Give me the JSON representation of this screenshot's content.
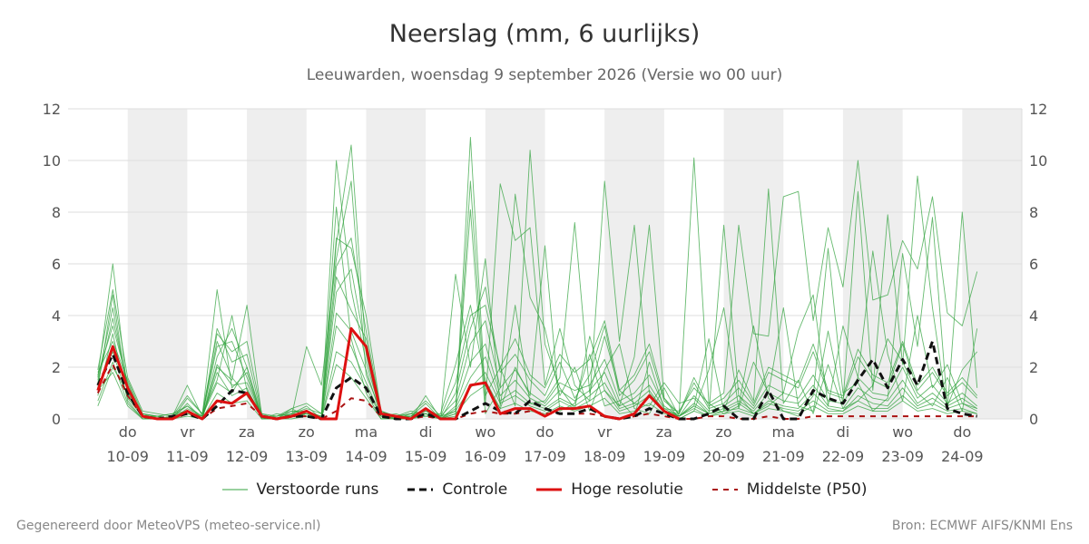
{
  "chart_data": {
    "type": "line",
    "title": "Neerslag (mm, 6 uurlijks)",
    "subtitle": "Leeuwarden, woensdag  9 september 2026 (Versie wo 00 uur)",
    "ylim": [
      0,
      12
    ],
    "yticks": [
      0,
      2,
      4,
      6,
      8,
      10,
      12
    ],
    "grid": true,
    "legend_position": "bottom",
    "day_labels": [
      {
        "day": "do",
        "date": "10-09"
      },
      {
        "day": "vr",
        "date": "11-09"
      },
      {
        "day": "za",
        "date": "12-09"
      },
      {
        "day": "zo",
        "date": "13-09"
      },
      {
        "day": "ma",
        "date": "14-09"
      },
      {
        "day": "di",
        "date": "15-09"
      },
      {
        "day": "wo",
        "date": "16-09"
      },
      {
        "day": "do",
        "date": "17-09"
      },
      {
        "day": "vr",
        "date": "18-09"
      },
      {
        "day": "za",
        "date": "19-09"
      },
      {
        "day": "zo",
        "date": "20-09"
      },
      {
        "day": "ma",
        "date": "21-09"
      },
      {
        "day": "di",
        "date": "22-09"
      },
      {
        "day": "wo",
        "date": "23-09"
      },
      {
        "day": "do",
        "date": "24-09"
      }
    ],
    "x_step_hours": 6,
    "legend": [
      "Verstoorde runs",
      "Controle",
      "Hoge resolutie",
      "Middelste (P50)"
    ],
    "series": [
      {
        "name": "Hoge resolutie",
        "color": "#dd1111",
        "style": "solid",
        "values": [
          1.1,
          2.8,
          1.2,
          0.1,
          0.0,
          0.0,
          0.3,
          0.0,
          0.7,
          0.6,
          1.0,
          0.1,
          0.0,
          0.1,
          0.3,
          0.0,
          0.0,
          3.5,
          2.8,
          0.2,
          0.1,
          0.0,
          0.4,
          0.0,
          0.0,
          1.3,
          1.4,
          0.2,
          0.4,
          0.4,
          0.1,
          0.4,
          0.4,
          0.5,
          0.1,
          0.0,
          0.2,
          0.9,
          0.3,
          0.0
        ]
      },
      {
        "name": "Controle",
        "color": "#111111",
        "style": "dashed",
        "values": [
          1.3,
          2.5,
          1.0,
          0.1,
          0.0,
          0.1,
          0.2,
          0.0,
          0.5,
          1.1,
          1.0,
          0.1,
          0.0,
          0.1,
          0.1,
          0.0,
          1.2,
          1.6,
          1.2,
          0.1,
          0.0,
          0.0,
          0.2,
          0.0,
          0.0,
          0.3,
          0.6,
          0.3,
          0.2,
          0.7,
          0.4,
          0.2,
          0.2,
          0.4,
          0.1,
          0.0,
          0.1,
          0.4,
          0.2,
          0.0,
          0.0,
          0.2,
          0.5,
          0.0,
          0.0,
          1.1,
          0.0,
          0.0,
          1.1,
          0.8,
          0.6,
          1.5,
          2.3,
          1.2,
          2.3,
          1.3,
          3.0,
          0.4,
          0.2,
          0.1
        ]
      },
      {
        "name": "Middelste (P50)",
        "color": "#aa1111",
        "style": "dashed",
        "values": [
          1.0,
          2.1,
          0.9,
          0.1,
          0.0,
          0.0,
          0.2,
          0.0,
          0.4,
          0.5,
          0.6,
          0.1,
          0.0,
          0.1,
          0.1,
          0.0,
          0.3,
          0.8,
          0.7,
          0.1,
          0.0,
          0.0,
          0.1,
          0.0,
          0.0,
          0.2,
          0.3,
          0.2,
          0.2,
          0.3,
          0.2,
          0.2,
          0.2,
          0.2,
          0.1,
          0.0,
          0.1,
          0.2,
          0.1,
          0.0,
          0.0,
          0.1,
          0.1,
          0.0,
          0.0,
          0.1,
          0.0,
          0.0,
          0.1,
          0.1,
          0.1,
          0.1,
          0.1,
          0.1,
          0.1,
          0.1,
          0.1,
          0.1,
          0.1,
          0.1
        ]
      },
      {
        "name": "Verstoorde runs",
        "color": "#33a33f",
        "style": "thin",
        "member": 1,
        "values": [
          1.6,
          6.0,
          1.0,
          0.2,
          0.1,
          0.0,
          0.4,
          0.1,
          3.0,
          1.6,
          0.9,
          0.1,
          0.0,
          0.3,
          0.2,
          0.1,
          7.0,
          6.6,
          4.0,
          0.3,
          0.1,
          0.2,
          0.3,
          0.0,
          0.2,
          9.2,
          0.6,
          9.1,
          6.9,
          7.4,
          1.3,
          3.5,
          1.3,
          0.7,
          9.2,
          3.0,
          7.5,
          1.0,
          0.3,
          0.2,
          10.1,
          0.6,
          1.0,
          7.5,
          3.3,
          3.2,
          8.6,
          8.8,
          3.8,
          7.4,
          5.1,
          10.0,
          4.6,
          4.8,
          6.9,
          5.8,
          8.6,
          4.1,
          3.6,
          5.7
        ]
      },
      {
        "name": "Verstoorde runs",
        "color": "#33a33f",
        "style": "thin",
        "member": 2,
        "values": [
          1.2,
          4.8,
          0.9,
          0.1,
          0.0,
          0.1,
          0.5,
          0.0,
          2.4,
          3.5,
          2.0,
          0.0,
          0.1,
          0.2,
          0.4,
          0.2,
          10.0,
          5.0,
          2.2,
          0.2,
          0.0,
          0.1,
          0.2,
          0.0,
          0.1,
          10.9,
          0.9,
          2.0,
          0.5,
          10.4,
          2.9,
          1.2,
          0.4,
          3.2,
          1.1,
          0.5,
          2.4,
          7.5,
          0.8,
          0.0,
          0.3,
          1.9,
          4.3,
          0.4,
          2.2,
          1.0,
          4.3,
          0.5,
          0.3,
          3.4,
          0.6,
          8.8,
          1.1,
          7.9,
          2.1,
          9.4,
          4.3,
          0.3,
          8.0,
          1.2
        ]
      },
      {
        "name": "Verstoorde runs",
        "color": "#33a33f",
        "style": "thin",
        "member": 3,
        "values": [
          1.4,
          3.9,
          1.3,
          0.1,
          0.1,
          0.0,
          0.8,
          0.2,
          1.5,
          4.0,
          1.1,
          0.2,
          0.0,
          0.1,
          0.2,
          0.0,
          6.8,
          10.6,
          2.5,
          0.1,
          0.2,
          0.0,
          0.9,
          0.0,
          5.6,
          2.0,
          6.2,
          0.5,
          4.4,
          0.6,
          0.7,
          1.6,
          7.6,
          1.0,
          3.2,
          1.1,
          0.6,
          0.5,
          1.4,
          0.6,
          0.8,
          0.2,
          7.5,
          0.9,
          0.2,
          0.5,
          1.0,
          3.4,
          4.8,
          0.5,
          3.6,
          1.6,
          6.5,
          2.5,
          0.7,
          4.0,
          1.2,
          2.1,
          0.6,
          0.4
        ]
      },
      {
        "name": "Verstoorde runs",
        "color": "#33a33f",
        "style": "thin",
        "member": 4,
        "values": [
          0.9,
          3.3,
          0.7,
          0.0,
          0.1,
          0.2,
          0.3,
          0.0,
          2.0,
          1.5,
          4.4,
          0.1,
          0.0,
          0.4,
          0.1,
          0.1,
          8.2,
          3.1,
          1.0,
          0.0,
          0.1,
          0.3,
          0.2,
          0.1,
          0.3,
          8.1,
          0.2,
          1.2,
          8.7,
          4.7,
          3.5,
          0.9,
          2.0,
          0.3,
          1.9,
          2.9,
          0.4,
          0.2,
          1.2,
          0.1,
          0.5,
          3.1,
          0.3,
          1.9,
          0.7,
          8.9,
          0.6,
          1.5,
          0.2,
          2.1,
          0.4,
          0.7,
          1.3,
          3.1,
          2.2,
          1.0,
          0.5,
          1.6,
          0.3,
          3.5
        ]
      },
      {
        "name": "Verstoorde runs",
        "color": "#33a33f",
        "style": "thin",
        "member": 5,
        "values": [
          1.8,
          3.0,
          1.5,
          0.2,
          0.0,
          0.1,
          1.3,
          0.1,
          5.0,
          1.2,
          1.8,
          0.0,
          0.2,
          0.1,
          2.8,
          1.3,
          6.2,
          9.2,
          1.7,
          0.3,
          0.0,
          0.2,
          0.1,
          0.2,
          2.1,
          4.4,
          1.5,
          0.4,
          2.0,
          0.9,
          6.7,
          0.3,
          0.6,
          2.5,
          0.5,
          0.7,
          0.1,
          2.2,
          0.4,
          0.3,
          1.2,
          0.6,
          0.2,
          0.5,
          3.6,
          0.8,
          0.3,
          0.1,
          0.9,
          6.6,
          1.0,
          1.4,
          0.3,
          0.8,
          6.4,
          2.8,
          7.8,
          0.5,
          1.9,
          2.6
        ]
      },
      {
        "name": "Verstoorde runs",
        "color": "#33a33f",
        "style": "thin",
        "member": 6,
        "values": [
          1.5,
          4.3,
          1.1,
          0.1,
          0.1,
          0.0,
          0.6,
          0.0,
          3.5,
          2.2,
          2.5,
          0.1,
          0.0,
          0.2,
          0.5,
          0.0,
          5.5,
          4.2,
          3.1,
          0.2,
          0.1,
          0.1,
          0.6,
          0.0,
          1.0,
          3.5,
          5.1,
          1.8,
          2.5,
          1.5,
          0.9,
          2.2,
          0.8,
          1.7,
          3.6,
          0.9,
          1.5,
          2.6,
          0.7,
          0.2,
          1.4,
          0.4,
          0.6,
          1.2,
          0.5,
          1.8,
          1.5,
          1.2,
          2.6,
          1.0,
          0.8,
          2.4,
          1.5,
          1.2,
          2.9,
          1.1,
          1.8,
          0.9,
          1.4,
          0.8
        ]
      },
      {
        "name": "Verstoorde runs",
        "color": "#33a33f",
        "style": "thin",
        "member": 7,
        "values": [
          0.7,
          2.2,
          0.6,
          0.0,
          0.0,
          0.1,
          0.2,
          0.0,
          1.8,
          0.9,
          1.2,
          0.0,
          0.0,
          0.1,
          0.1,
          0.0,
          3.6,
          2.8,
          1.4,
          0.1,
          0.0,
          0.0,
          0.2,
          0.0,
          0.4,
          1.6,
          2.4,
          0.7,
          1.1,
          0.6,
          0.4,
          0.8,
          0.5,
          0.9,
          1.4,
          0.4,
          0.6,
          1.1,
          0.3,
          0.1,
          0.5,
          0.2,
          0.3,
          0.6,
          0.2,
          0.7,
          0.5,
          0.4,
          1.0,
          0.4,
          0.3,
          0.9,
          0.6,
          0.5,
          1.2,
          0.5,
          0.8,
          0.4,
          0.6,
          0.3
        ]
      },
      {
        "name": "Verstoorde runs",
        "color": "#33a33f",
        "style": "thin",
        "member": 8,
        "values": [
          1.7,
          3.6,
          1.4,
          0.1,
          0.1,
          0.2,
          0.5,
          0.1,
          2.8,
          3.0,
          1.6,
          0.1,
          0.1,
          0.3,
          0.3,
          0.1,
          4.9,
          5.8,
          2.6,
          0.2,
          0.1,
          0.1,
          0.4,
          0.1,
          0.7,
          2.9,
          3.8,
          1.2,
          1.9,
          1.0,
          0.6,
          1.4,
          1.1,
          1.3,
          2.3,
          0.7,
          1.0,
          1.7,
          0.5,
          0.1,
          0.9,
          0.3,
          0.5,
          0.9,
          0.4,
          1.3,
          1.0,
          0.8,
          1.7,
          0.7,
          0.6,
          1.6,
          1.0,
          0.9,
          2.0,
          0.8,
          1.3,
          0.6,
          1.0,
          0.5
        ]
      },
      {
        "name": "Verstoorde runs",
        "color": "#33a33f",
        "style": "thin",
        "member": 9,
        "values": [
          1.1,
          1.8,
          0.5,
          0.0,
          0.0,
          0.0,
          0.1,
          0.0,
          1.0,
          0.6,
          0.7,
          0.0,
          0.0,
          0.0,
          0.1,
          0.0,
          2.1,
          1.6,
          0.8,
          0.0,
          0.0,
          0.0,
          0.1,
          0.0,
          0.2,
          0.9,
          1.3,
          0.4,
          0.6,
          0.3,
          0.2,
          0.5,
          0.3,
          0.5,
          0.8,
          0.2,
          0.3,
          0.6,
          0.2,
          0.0,
          0.3,
          0.1,
          0.2,
          0.3,
          0.1,
          0.4,
          0.3,
          0.2,
          0.5,
          0.2,
          0.2,
          0.5,
          0.3,
          0.3,
          0.7,
          0.3,
          0.4,
          0.2,
          0.3,
          0.2
        ]
      },
      {
        "name": "Verstoorde runs",
        "color": "#33a33f",
        "style": "thin",
        "member": 10,
        "values": [
          1.3,
          2.6,
          0.8,
          0.1,
          0.0,
          0.1,
          0.3,
          0.0,
          2.1,
          1.3,
          1.4,
          0.1,
          0.0,
          0.1,
          0.2,
          0.0,
          4.1,
          3.4,
          1.9,
          0.1,
          0.0,
          0.1,
          0.3,
          0.0,
          0.5,
          2.2,
          2.9,
          0.9,
          1.5,
          0.8,
          0.5,
          1.1,
          0.7,
          1.1,
          1.8,
          0.5,
          0.8,
          1.3,
          0.4,
          0.1,
          0.6,
          0.2,
          0.4,
          0.7,
          0.3,
          1.0,
          0.7,
          0.6,
          1.3,
          0.5,
          0.4,
          1.2,
          0.8,
          0.7,
          1.5,
          0.6,
          1.0,
          0.5,
          0.8,
          0.4
        ]
      },
      {
        "name": "Verstoorde runs",
        "color": "#33a33f",
        "style": "thin",
        "member": 11,
        "values": [
          0.5,
          2.0,
          1.0,
          0.2,
          0.1,
          0.0,
          0.2,
          0.1,
          1.4,
          1.0,
          2.0,
          0.1,
          0.0,
          0.2,
          0.2,
          0.0,
          2.6,
          2.2,
          1.2,
          0.1,
          0.1,
          0.0,
          0.2,
          0.0,
          0.3,
          1.2,
          1.8,
          0.6,
          0.9,
          0.5,
          0.3,
          0.7,
          0.4,
          0.7,
          1.1,
          0.3,
          0.5,
          0.9,
          0.3,
          0.1,
          0.4,
          0.1,
          0.3,
          0.4,
          0.2,
          0.6,
          0.4,
          0.3,
          0.7,
          0.3,
          0.3,
          0.7,
          0.4,
          0.4,
          0.9,
          0.4,
          0.6,
          0.3,
          0.4,
          0.2
        ]
      },
      {
        "name": "Verstoorde runs",
        "color": "#33a33f",
        "style": "thin",
        "member": 12,
        "values": [
          1.9,
          5.0,
          1.6,
          0.3,
          0.2,
          0.1,
          0.9,
          0.2,
          3.3,
          2.6,
          3.0,
          0.2,
          0.1,
          0.4,
          0.6,
          0.2,
          5.9,
          7.0,
          3.4,
          0.3,
          0.1,
          0.2,
          0.7,
          0.1,
          1.4,
          4.0,
          4.4,
          2.0,
          3.1,
          1.7,
          1.2,
          2.5,
          1.8,
          2.3,
          3.8,
          1.1,
          1.7,
          2.9,
          0.8,
          0.2,
          1.6,
          0.5,
          0.8,
          1.5,
          0.6,
          2.0,
          1.7,
          1.4,
          2.9,
          1.1,
          0.9,
          2.7,
          1.7,
          1.4,
          3.0,
          1.3,
          2.0,
          1.0,
          1.6,
          0.9
        ]
      }
    ]
  },
  "legend_labels": {
    "perturbed": "Verstoorde runs",
    "control": "Controle",
    "high_res": "Hoge resolutie",
    "median": "Middelste (P50)"
  },
  "footer": {
    "left": "Gegenereerd door MeteoVPS (meteo-service.nl)",
    "right": "Bron: ECMWF AIFS/KNMI Ens"
  },
  "colors": {
    "ensemble": "#33a33f",
    "control": "#111111",
    "high_res": "#dd1111",
    "median": "#aa1111",
    "weekend_shade": "#eeeeee",
    "grid": "#dddddd"
  }
}
